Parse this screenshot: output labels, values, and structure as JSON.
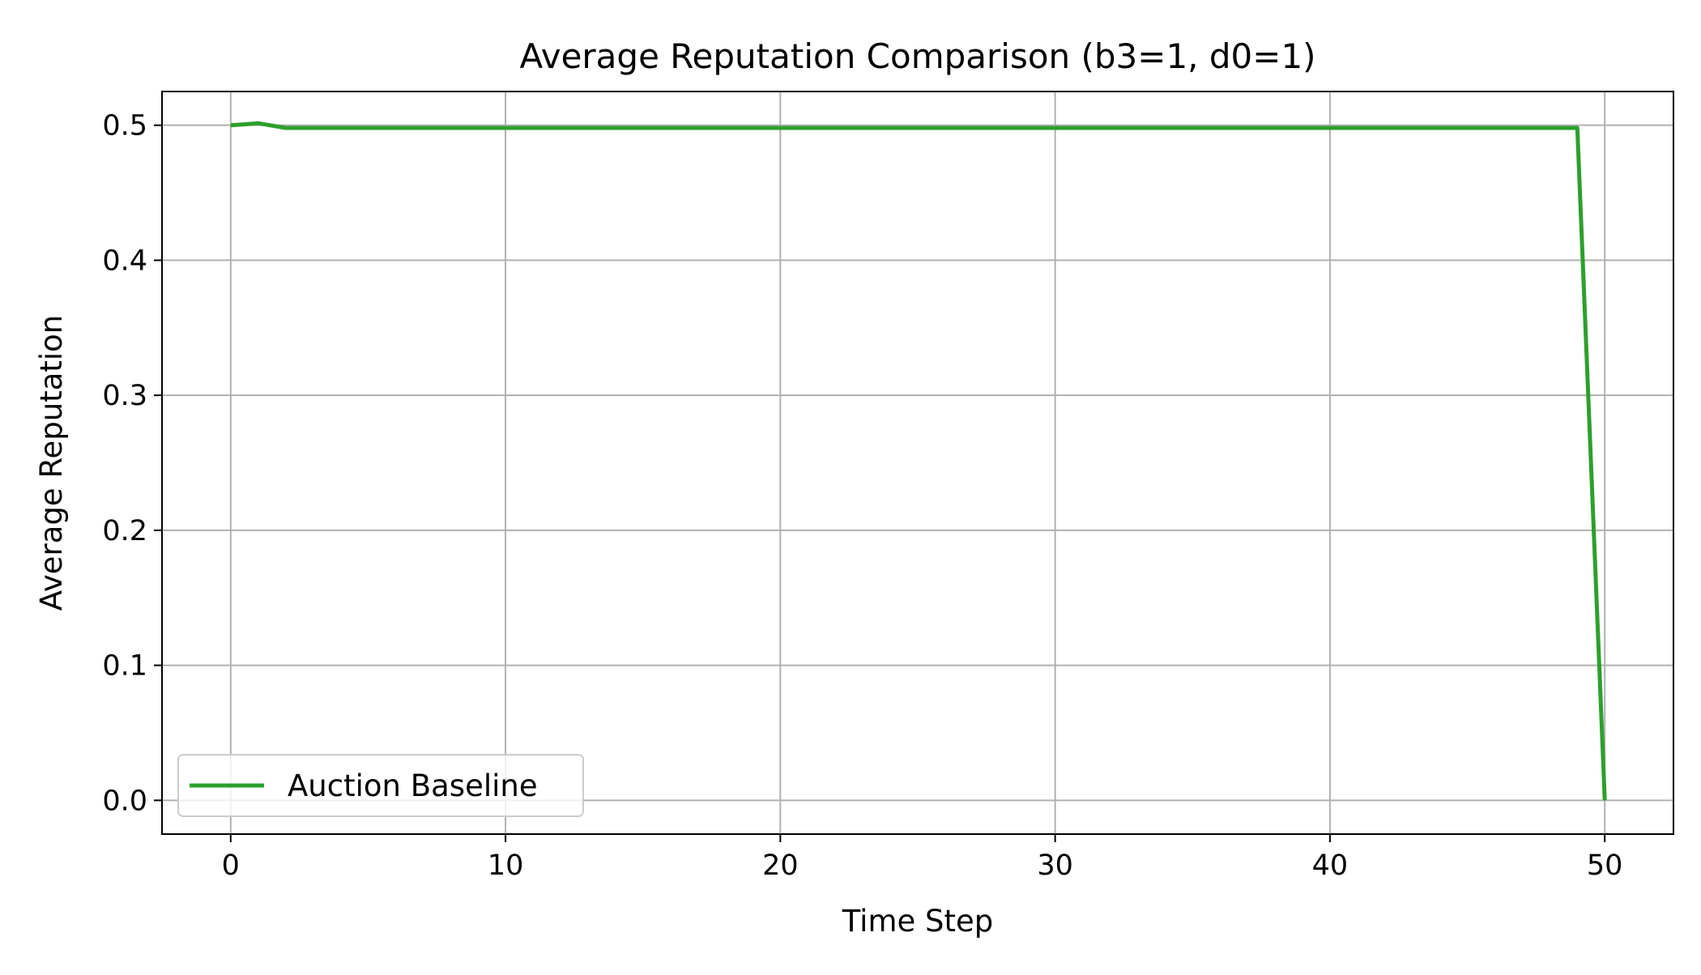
{
  "chart_data": {
    "type": "line",
    "title": "Average Reputation Comparison (b3=1, d0=1)",
    "xlabel": "Time Step",
    "ylabel": "Average Reputation",
    "xlim": [
      -2.5,
      52.5
    ],
    "ylim": [
      -0.025,
      0.525
    ],
    "xticks": [
      0,
      10,
      20,
      30,
      40,
      50
    ],
    "xtick_labels": [
      "0",
      "10",
      "20",
      "30",
      "40",
      "50"
    ],
    "yticks": [
      0.0,
      0.1,
      0.2,
      0.3,
      0.4,
      0.5
    ],
    "ytick_labels": [
      "0.0",
      "0.1",
      "0.2",
      "0.3",
      "0.4",
      "0.5"
    ],
    "grid": true,
    "legend_position": "lower-left",
    "series": [
      {
        "name": "Auction Baseline",
        "color": "#2ca02c",
        "x": [
          0,
          1,
          2,
          3,
          4,
          5,
          6,
          7,
          8,
          9,
          10,
          11,
          12,
          13,
          14,
          15,
          16,
          17,
          18,
          19,
          20,
          21,
          22,
          23,
          24,
          25,
          26,
          27,
          28,
          29,
          30,
          31,
          32,
          33,
          34,
          35,
          36,
          37,
          38,
          39,
          40,
          41,
          42,
          43,
          44,
          45,
          46,
          47,
          48,
          49,
          50
        ],
        "y": [
          0.5,
          0.5015,
          0.498,
          0.498,
          0.498,
          0.498,
          0.498,
          0.498,
          0.498,
          0.498,
          0.498,
          0.498,
          0.498,
          0.498,
          0.498,
          0.498,
          0.498,
          0.498,
          0.498,
          0.498,
          0.498,
          0.498,
          0.498,
          0.498,
          0.498,
          0.498,
          0.498,
          0.498,
          0.498,
          0.498,
          0.498,
          0.498,
          0.498,
          0.498,
          0.498,
          0.498,
          0.498,
          0.498,
          0.498,
          0.498,
          0.498,
          0.498,
          0.498,
          0.498,
          0.498,
          0.498,
          0.498,
          0.498,
          0.498,
          0.498,
          0.0
        ]
      }
    ]
  }
}
